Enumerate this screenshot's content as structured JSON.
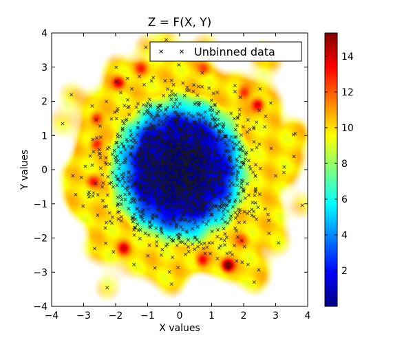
{
  "chart_data": {
    "type": "heatmap",
    "title": "Z = F(X, Y)",
    "xlabel": "X values",
    "ylabel": "Y values",
    "xlim": [
      -4,
      4
    ],
    "ylim": [
      -4,
      4
    ],
    "xticks": [
      -4,
      -3,
      -2,
      -1,
      0,
      1,
      2,
      3,
      4
    ],
    "yticks": [
      -4,
      -3,
      -2,
      -1,
      0,
      1,
      2,
      3,
      4
    ],
    "grid": false,
    "legend": {
      "placement": "upper-right",
      "entries": [
        {
          "label": "Unbinned data",
          "marker": "x",
          "color": "#000000"
        }
      ]
    },
    "colorbar": {
      "range": [
        0,
        15.3
      ],
      "ticks": [
        2,
        4,
        6,
        8,
        10,
        12,
        14
      ],
      "colormap": "jet",
      "colors": [
        "#00007f",
        "#0000ff",
        "#007fff",
        "#00ffff",
        "#7fff7f",
        "#ffff00",
        "#ff7f00",
        "#ff0000",
        "#7f0000"
      ]
    },
    "surface": {
      "description_values": {
        "center": 0,
        "inner_radius": 1.3,
        "ring_radius": 2.3,
        "ring_peak": 10
      },
      "hotspots": [
        {
          "x": -1.9,
          "y": 2.55,
          "z": 13
        },
        {
          "x": -2.6,
          "y": 1.5,
          "z": 12.5
        },
        {
          "x": -2.6,
          "y": 0.75,
          "z": 12.5
        },
        {
          "x": -2.7,
          "y": -0.35,
          "z": 12
        },
        {
          "x": -1.75,
          "y": -2.3,
          "z": 12.5
        },
        {
          "x": 0.7,
          "y": -2.65,
          "z": 12.5
        },
        {
          "x": 1.5,
          "y": -2.8,
          "z": 15
        },
        {
          "x": 2.45,
          "y": 1.9,
          "z": 13.5
        },
        {
          "x": 2.0,
          "y": 2.25,
          "z": 12
        },
        {
          "x": 0.75,
          "y": 2.95,
          "z": 11.5
        },
        {
          "x": -1.2,
          "y": 2.95,
          "z": 11.5
        },
        {
          "x": 1.95,
          "y": -2.05,
          "z": 11
        }
      ]
    },
    "scatter": {
      "series_name": "Unbinned data",
      "n_points": 1500,
      "distribution": "normal",
      "mean": [
        0,
        0
      ],
      "std": [
        1.15,
        1.15
      ]
    }
  }
}
